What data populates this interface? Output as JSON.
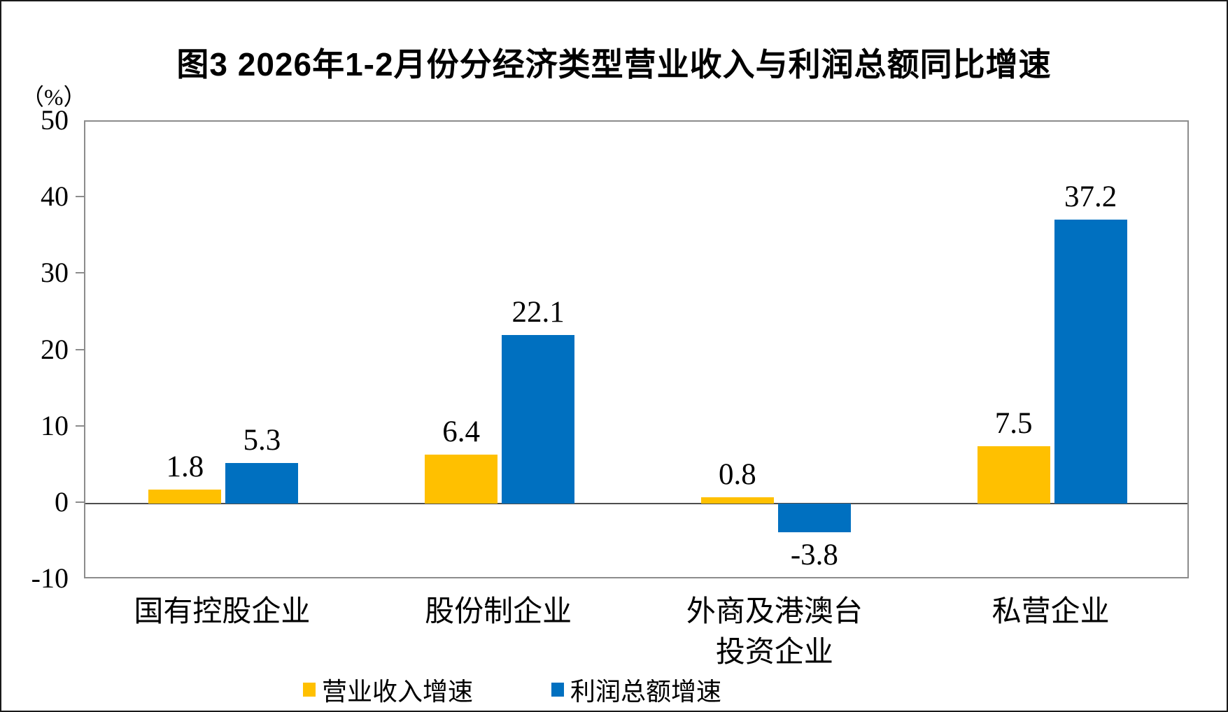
{
  "title": "图3 2026年1-2月份分经济类型营业收入与利润总额同比增速",
  "y_axis_unit": "（%）",
  "chart_data": {
    "type": "bar",
    "title": "图3 2026年1-2月份分经济类型营业收入与利润总额同比增速",
    "y_axis_unit": "（%）",
    "categories": [
      "国有控股企业",
      "股份制企业",
      "外商及港澳台\n投资企业",
      "私营企业"
    ],
    "series": [
      {
        "name": "营业收入增速",
        "color": "#FFC000",
        "values": [
          1.8,
          6.4,
          0.8,
          7.5
        ]
      },
      {
        "name": "利润总额增速",
        "color": "#0070C0",
        "values": [
          5.3,
          22.1,
          -3.8,
          37.2
        ]
      }
    ],
    "ylim": [
      -10,
      50
    ],
    "ytick_interval": 10,
    "yticks": [
      50,
      40,
      30,
      20,
      10,
      0,
      -10
    ],
    "grid": false,
    "legend_position": "bottom",
    "colors": {
      "revenue_series": "#FFC000",
      "profit_series": "#0070C0",
      "plot_border": "#8c8c8c",
      "zero_line": "#4d4d4d",
      "text": "#000000"
    }
  },
  "legend": {
    "items": [
      {
        "label": "营业收入增速",
        "color": "#FFC000"
      },
      {
        "label": "利润总额增速",
        "color": "#0070C0"
      }
    ]
  }
}
